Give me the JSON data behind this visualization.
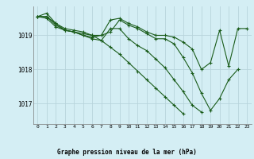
{
  "xlabel": "Graphe pression niveau de la mer (hPa)",
  "ylabel": "",
  "background_color": "#d4eef4",
  "grid_color": "#b8d4dc",
  "line_color": "#1a5c1a",
  "x_ticks": [
    0,
    1,
    2,
    3,
    4,
    5,
    6,
    7,
    8,
    9,
    10,
    11,
    12,
    13,
    14,
    15,
    16,
    17,
    18,
    19,
    20,
    21,
    22,
    23
  ],
  "ylim": [
    1016.4,
    1019.85
  ],
  "yticks": [
    1017,
    1018,
    1019
  ],
  "series": [
    [
      1019.55,
      1019.65,
      1019.35,
      1019.15,
      1019.1,
      1019.0,
      1018.95,
      1019.0,
      1019.45,
      1019.5,
      1019.35,
      1019.25,
      1019.1,
      1019.0,
      1019.0,
      1018.95,
      1018.8,
      1018.6,
      1018.0,
      1018.2,
      1019.15,
      1018.1,
      1019.2,
      1019.2
    ],
    [
      1019.55,
      1019.5,
      1019.25,
      1019.15,
      1019.1,
      1019.05,
      1019.0,
      1019.0,
      1019.1,
      1019.45,
      1019.3,
      1019.2,
      1019.05,
      1018.9,
      1018.9,
      1018.75,
      1018.35,
      1017.9,
      1017.3,
      1016.8,
      1017.15,
      1017.7,
      1018.0,
      null
    ],
    [
      1019.55,
      1019.55,
      1019.3,
      1019.15,
      1019.1,
      1019.0,
      1018.9,
      1018.85,
      1019.2,
      1019.2,
      1018.9,
      1018.7,
      1018.55,
      1018.3,
      1018.05,
      1017.7,
      1017.35,
      1016.95,
      1016.75,
      null,
      null,
      null,
      null,
      null
    ],
    [
      1019.55,
      1019.55,
      1019.35,
      1019.2,
      1019.15,
      1019.1,
      1019.0,
      1018.85,
      1018.65,
      1018.45,
      1018.2,
      1017.95,
      1017.7,
      1017.45,
      1017.2,
      1016.95,
      1016.7,
      null,
      null,
      null,
      null,
      null,
      null,
      null
    ]
  ],
  "figsize": [
    3.2,
    2.0
  ],
  "dpi": 100
}
